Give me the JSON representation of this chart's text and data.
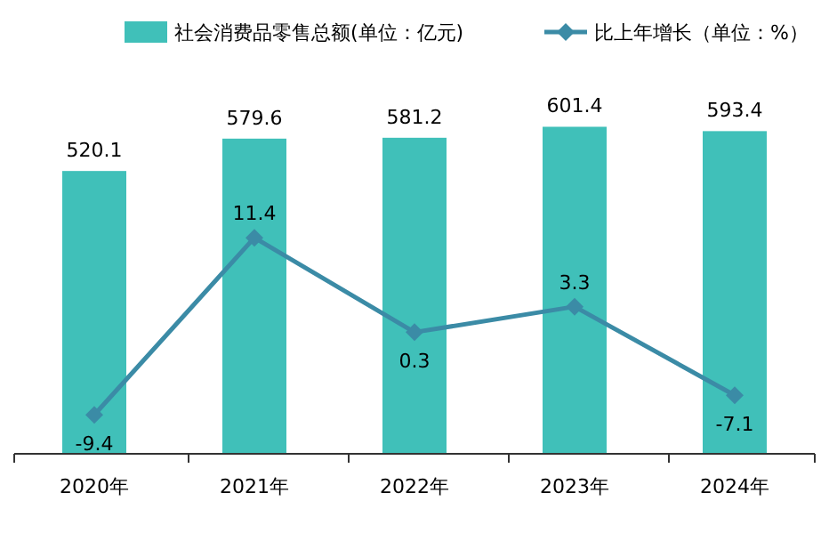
{
  "chart_data": {
    "type": "bar",
    "categories": [
      "2020年",
      "2021年",
      "2022年",
      "2023年",
      "2024年"
    ],
    "series": [
      {
        "name": "社会消费品零售总额(单位：亿元)",
        "color": "#40c0b9",
        "values": [
          520.1,
          579.6,
          581.2,
          601.4,
          593.4
        ]
      },
      {
        "name": "比上年增长（单位：%）",
        "type": "line",
        "axis": "y2",
        "color": "#3b8ba6",
        "values": [
          -9.4,
          11.4,
          0.3,
          3.3,
          -7.1
        ]
      }
    ],
    "data_labels": true,
    "legend": "top",
    "marker": "diamond",
    "tick_labels": "x"
  }
}
